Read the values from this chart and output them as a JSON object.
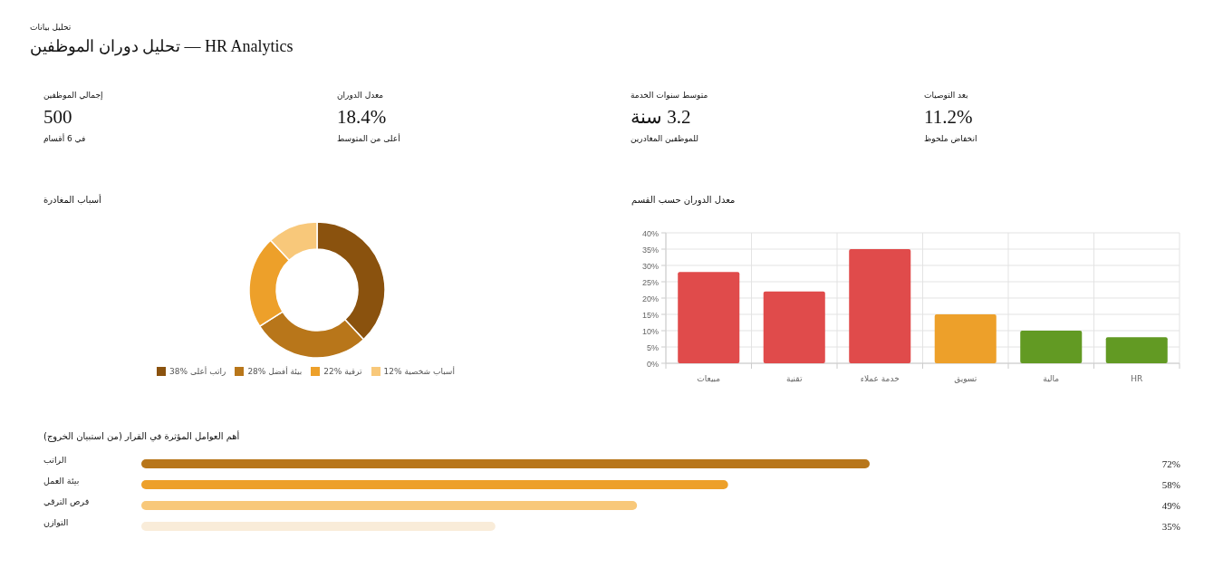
{
  "chart_data": [
    {
      "type": "other",
      "title": "تحليل دوران الموظفين — HR Analytics",
      "subtitle": "تحليل بيانات",
      "annotations": [
        "إجمالي الموظفين",
        "500",
        "في 6 أقسام",
        "معدل الدوران",
        "18.4%",
        "أعلى من المتوسط",
        "متوسط سنوات الخدمة",
        "3.2 سنة",
        "للموظفين المغادرين",
        "بعد التوصيات",
        "11.2%",
        "انخفاض ملحوظ"
      ]
    },
    {
      "type": "donut",
      "title": "أسباب المغادرة",
      "legend": "bottom",
      "categories": [
        "راتب أعلى",
        "بيئة أفضل",
        "ترقية",
        "أسباب شخصية"
      ],
      "values": [
        38,
        28,
        22,
        12
      ],
      "value_labels": [
        "38%",
        "28%",
        "22%",
        "12%"
      ],
      "colors": [
        "#8a520e",
        "#b8761a",
        "#eda02a",
        "#f8c87a"
      ]
    },
    {
      "type": "bar",
      "title": "معدل الدوران حسب القسم",
      "grid": true,
      "categories": [
        "مبيعات",
        "تقنية",
        "خدمة عملاء",
        "تسويق",
        "مالية",
        "HR"
      ],
      "values": [
        28,
        22,
        35,
        15,
        10,
        8
      ],
      "colors": [
        "#e04b4b",
        "#e04b4b",
        "#e04b4b",
        "#eda02a",
        "#629a23",
        "#629a23"
      ],
      "ylim": [
        0,
        40
      ],
      "yticks": [
        {
          "value": 0,
          "label": "0%"
        },
        {
          "value": 5,
          "label": "5%"
        },
        {
          "value": 10,
          "label": "10%"
        },
        {
          "value": 15,
          "label": "15%"
        },
        {
          "value": 20,
          "label": "20%"
        },
        {
          "value": 25,
          "label": "25%"
        },
        {
          "value": 30,
          "label": "30%"
        },
        {
          "value": 35,
          "label": "35%"
        },
        {
          "value": 40,
          "label": "40%"
        }
      ]
    },
    {
      "type": "bar",
      "orientation": "horizontal",
      "title": "أهم العوامل المؤثرة في القرار (من استبيان الخروج)",
      "categories": [
        "الراتب",
        "بيئة العمل",
        "فرص الترقي",
        "التوازن"
      ],
      "values": [
        72,
        58,
        49,
        35
      ],
      "value_labels": [
        "72%",
        "58%",
        "49%",
        "35%"
      ],
      "colors": [
        "#b8761a",
        "#eda02a",
        "#f8c87a",
        "#f9ecd9"
      ]
    }
  ]
}
